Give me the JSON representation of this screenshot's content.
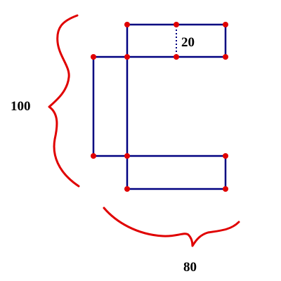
{
  "labels": {
    "height": "100",
    "width": "80",
    "gap": "20"
  },
  "colors": {
    "outline": "#000080",
    "vertex": "#e00000",
    "brace": "#e00000",
    "label": "#000000",
    "background": "#ffffff"
  }
}
